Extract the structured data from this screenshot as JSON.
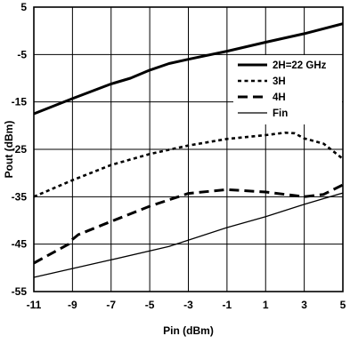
{
  "chart_data": {
    "type": "line",
    "title": "",
    "xlabel": "Pin (dBm)",
    "ylabel": "Pout (dBm)",
    "xlim": [
      -11,
      5
    ],
    "ylim": [
      -55,
      5
    ],
    "xticks": [
      -11,
      -9,
      -7,
      -5,
      -3,
      -1,
      1,
      3,
      5
    ],
    "yticks": [
      5,
      -5,
      -15,
      -25,
      -35,
      -45,
      -55
    ],
    "grid": true,
    "legend_position": "right",
    "series": [
      {
        "name": "2H=22 GHz",
        "style": "solid-thick",
        "color": "#000000",
        "x": [
          -11,
          -9,
          -7,
          -6,
          -5,
          -4,
          -3,
          -1,
          1,
          3,
          5
        ],
        "y": [
          -17.5,
          -14.3,
          -11.2,
          -10,
          -8.3,
          -6.9,
          -6,
          -4.3,
          -2.4,
          -0.6,
          1.5
        ]
      },
      {
        "name": "3H",
        "style": "dotted",
        "color": "#000000",
        "x": [
          -11,
          -9,
          -7,
          -5,
          -3,
          -1,
          1,
          2,
          2.5,
          3,
          4,
          5
        ],
        "y": [
          -35,
          -31.5,
          -28.3,
          -26,
          -24.2,
          -22.8,
          -22,
          -21.5,
          -21.6,
          -22.7,
          -23.8,
          -27
        ]
      },
      {
        "name": "4H",
        "style": "dashed",
        "color": "#000000",
        "x": [
          -11,
          -9.2,
          -9,
          -8.7,
          -7,
          -5,
          -3,
          -1,
          1,
          3,
          4,
          5
        ],
        "y": [
          -49,
          -45,
          -44,
          -43,
          -40.2,
          -37,
          -34.3,
          -33.5,
          -34,
          -35,
          -34.5,
          -32.5
        ]
      },
      {
        "name": "Fin",
        "style": "solid-thin",
        "color": "#000000",
        "x": [
          -11,
          -7,
          -4,
          -1,
          1,
          3,
          5
        ],
        "y": [
          -52,
          -48.3,
          -45.5,
          -41.5,
          -39.2,
          -36.6,
          -34.2
        ]
      }
    ]
  }
}
